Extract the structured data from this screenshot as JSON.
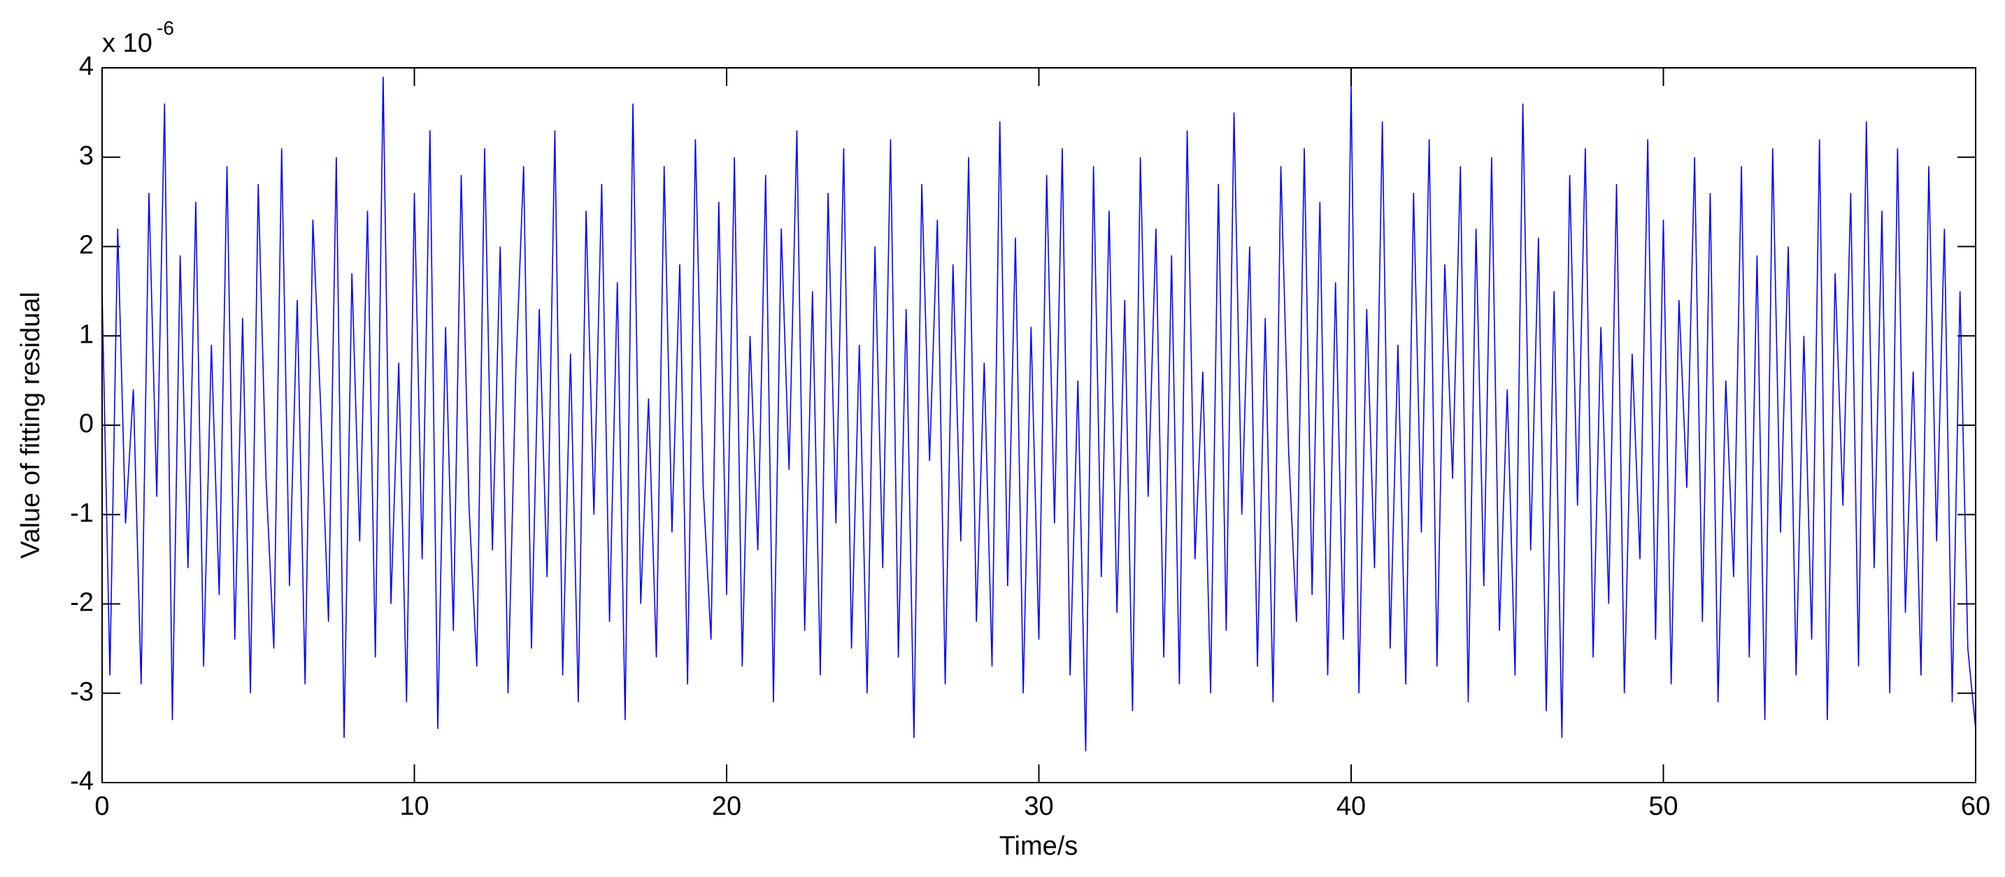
{
  "chart_data": {
    "type": "line",
    "xlabel": "Time/s",
    "ylabel": "Value of fitting residual",
    "y_multiplier": "x 10",
    "y_multiplier_exponent": "-6",
    "xlim": [
      0,
      60
    ],
    "xticks": [
      0,
      10,
      20,
      30,
      40,
      50,
      60
    ],
    "ylim": [
      -4,
      4
    ],
    "yticks": [
      -4,
      -3,
      -2,
      -1,
      0,
      1,
      2,
      3,
      4
    ],
    "grid": false,
    "series": [
      {
        "color": "#0000ff",
        "x": [
          0,
          0.25,
          0.5,
          0.75,
          1,
          1.25,
          1.5,
          1.75,
          2,
          2.25,
          2.5,
          2.75,
          3,
          3.25,
          3.5,
          3.75,
          4,
          4.25,
          4.5,
          4.75,
          5,
          5.25,
          5.5,
          5.75,
          6,
          6.25,
          6.5,
          6.75,
          7,
          7.25,
          7.5,
          7.75,
          8,
          8.25,
          8.5,
          8.75,
          9,
          9.25,
          9.5,
          9.75,
          10,
          10.25,
          10.5,
          10.75,
          11,
          11.25,
          11.5,
          11.75,
          12,
          12.25,
          12.5,
          12.75,
          13,
          13.25,
          13.5,
          13.75,
          14,
          14.25,
          14.5,
          14.75,
          15,
          15.25,
          15.5,
          15.75,
          16,
          16.25,
          16.5,
          16.75,
          17,
          17.25,
          17.5,
          17.75,
          18,
          18.25,
          18.5,
          18.75,
          19,
          19.25,
          19.5,
          19.75,
          20,
          20.25,
          20.5,
          20.75,
          21,
          21.25,
          21.5,
          21.75,
          22,
          22.25,
          22.5,
          22.75,
          23,
          23.25,
          23.5,
          23.75,
          24,
          24.25,
          24.5,
          24.75,
          25,
          25.25,
          25.5,
          25.75,
          26,
          26.25,
          26.5,
          26.75,
          27,
          27.25,
          27.5,
          27.75,
          28,
          28.25,
          28.5,
          28.75,
          29,
          29.25,
          29.5,
          29.75,
          30,
          30.25,
          30.5,
          30.75,
          31,
          31.25,
          31.5,
          31.75,
          32,
          32.25,
          32.5,
          32.75,
          33,
          33.25,
          33.5,
          33.75,
          34,
          34.25,
          34.5,
          34.75,
          35,
          35.25,
          35.5,
          35.75,
          36,
          36.25,
          36.5,
          36.75,
          37,
          37.25,
          37.5,
          37.75,
          38,
          38.25,
          38.5,
          38.75,
          39,
          39.25,
          39.5,
          39.75,
          40,
          40.25,
          40.5,
          40.75,
          41,
          41.25,
          41.5,
          41.75,
          42,
          42.25,
          42.5,
          42.75,
          43,
          43.25,
          43.5,
          43.75,
          44,
          44.25,
          44.5,
          44.75,
          45,
          45.25,
          45.5,
          45.75,
          46,
          46.25,
          46.5,
          46.75,
          47,
          47.25,
          47.5,
          47.75,
          48,
          48.25,
          48.5,
          48.75,
          49,
          49.25,
          49.5,
          49.75,
          50,
          50.25,
          50.5,
          50.75,
          51,
          51.25,
          51.5,
          51.75,
          52,
          52.25,
          52.5,
          52.75,
          53,
          53.25,
          53.5,
          53.75,
          54,
          54.25,
          54.5,
          54.75,
          55,
          55.25,
          55.5,
          55.75,
          56,
          56.25,
          56.5,
          56.75,
          57,
          57.25,
          57.5,
          57.75,
          58,
          58.25,
          58.5,
          58.75,
          59,
          59.25,
          59.5,
          59.75,
          60
        ],
        "values": [
          1.5,
          -2.8,
          2.2,
          -1.1,
          0.4,
          -2.9,
          2.6,
          -0.8,
          3.6,
          -3.3,
          1.9,
          -1.6,
          2.5,
          -2.7,
          0.9,
          -1.9,
          2.9,
          -2.4,
          1.2,
          -3.0,
          2.7,
          -0.6,
          -2.5,
          3.1,
          -1.8,
          1.4,
          -2.9,
          2.3,
          0.2,
          -2.2,
          3.0,
          -3.5,
          1.7,
          -1.3,
          2.4,
          -2.6,
          3.9,
          -2.0,
          0.7,
          -3.1,
          2.6,
          -1.5,
          3.3,
          -3.4,
          1.1,
          -2.3,
          2.8,
          -0.9,
          -2.7,
          3.1,
          -1.4,
          2.0,
          -3.0,
          0.6,
          2.9,
          -2.5,
          1.3,
          -1.7,
          3.3,
          -2.8,
          0.8,
          -3.1,
          2.4,
          -1.0,
          2.7,
          -2.2,
          1.6,
          -3.3,
          3.6,
          -2.0,
          0.3,
          -2.6,
          2.9,
          -1.2,
          1.8,
          -2.9,
          3.2,
          -0.7,
          -2.4,
          2.5,
          -1.9,
          3.0,
          -2.7,
          1.0,
          -1.4,
          2.8,
          -3.1,
          2.2,
          -0.5,
          3.3,
          -2.3,
          1.5,
          -2.8,
          2.6,
          -1.1,
          3.1,
          -2.5,
          0.9,
          -3.0,
          2.0,
          -1.6,
          3.2,
          -2.6,
          1.3,
          -3.5,
          2.7,
          -0.4,
          2.3,
          -2.9,
          1.8,
          -1.3,
          3.0,
          -2.2,
          0.7,
          -2.7,
          3.4,
          -1.8,
          2.1,
          -3.0,
          1.1,
          -2.4,
          2.8,
          -1.1,
          3.1,
          -2.8,
          0.5,
          -3.65,
          2.9,
          -1.7,
          2.4,
          -2.1,
          1.4,
          -3.2,
          3.0,
          -0.8,
          2.2,
          -2.6,
          1.9,
          -2.9,
          3.3,
          -1.5,
          0.6,
          -3.0,
          2.7,
          -2.3,
          3.5,
          -1.0,
          2.0,
          -2.7,
          1.2,
          -3.1,
          2.9,
          -0.3,
          -2.2,
          3.1,
          -1.9,
          2.5,
          -2.8,
          1.6,
          -2.4,
          3.8,
          -3.0,
          1.3,
          -1.6,
          3.4,
          -2.5,
          0.9,
          -2.9,
          2.6,
          -1.2,
          3.2,
          -2.7,
          1.8,
          -0.6,
          2.9,
          -3.1,
          2.2,
          -1.8,
          3.0,
          -2.3,
          0.4,
          -2.8,
          3.6,
          -1.4,
          2.1,
          -3.2,
          1.5,
          -3.5,
          2.8,
          -0.9,
          3.1,
          -2.6,
          1.1,
          -2.0,
          2.7,
          -3.0,
          0.8,
          -1.5,
          3.2,
          -2.4,
          2.3,
          -2.9,
          1.4,
          -0.7,
          3.0,
          -2.2,
          2.6,
          -3.1,
          0.5,
          -1.7,
          2.9,
          -2.6,
          1.9,
          -3.3,
          3.1,
          -1.2,
          2.0,
          -2.8,
          1.0,
          -2.4,
          3.2,
          -3.3,
          1.7,
          -0.9,
          2.6,
          -2.7,
          3.4,
          -1.6,
          2.4,
          -3.0,
          3.1,
          -2.1,
          0.6,
          -2.8,
          2.9,
          -1.3,
          2.2,
          -3.1,
          1.5,
          -2.5,
          -3.4
        ]
      }
    ]
  }
}
